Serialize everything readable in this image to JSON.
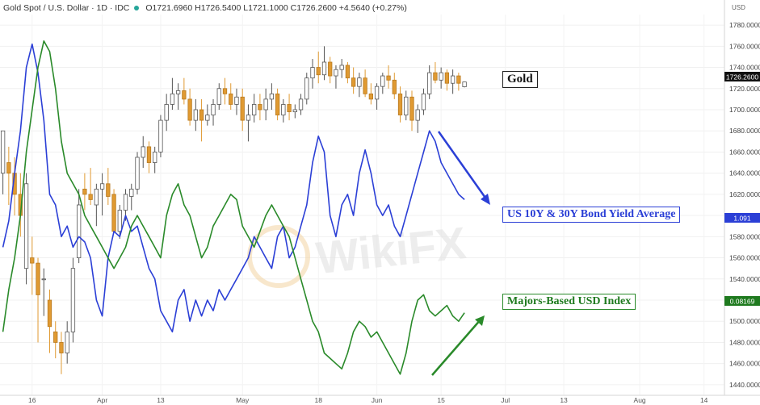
{
  "header": {
    "symbol": "Gold Spot / U.S. Dollar · 1D · IDC",
    "ohlc": "O1721.6960  H1726.5400  L1721.1000  C1726.2600  +4.5640 (+0.27%)"
  },
  "labels": {
    "gold": "Gold",
    "yield": "US 10Y & 30Y Bond Yield Average",
    "usd": "Majors-Based USD Index"
  },
  "price_tags": {
    "gold": "1726.2600",
    "yield": "1.091",
    "usd": "0.08169"
  },
  "axis_currency": "USD",
  "watermark": "WikiFX",
  "colors": {
    "up": "#ffffff",
    "down": "#e09a32",
    "yield": "#2b3fd6",
    "usd": "#2a8a2a",
    "arrow_blue": "#2b3fd6",
    "arrow_green": "#2a8a2a"
  },
  "chart_data": {
    "type": "candlestick",
    "ylim": [
      1430,
      1790
    ],
    "ytick_values": [
      1440,
      1460,
      1480,
      1500,
      1520,
      1540,
      1560,
      1580,
      1600,
      1620,
      1640,
      1660,
      1680,
      1700,
      1720,
      1740,
      1760,
      1780
    ],
    "ytick_labels": [
      "1440.0000",
      "1460.0000",
      "1480.0000",
      "1500.0000",
      "1520.0000",
      "1540.0000",
      "1560.0000",
      "1580.0000",
      "1600.0000",
      "1620.0000",
      "1640.0000",
      "1660.0000",
      "1680.0000",
      "1700.0000",
      "1720.0000",
      "1740.0000",
      "1760.0000",
      "1780.0000"
    ],
    "xtick_labels": [
      {
        "label": "16",
        "i": 5
      },
      {
        "label": "Apr",
        "i": 17
      },
      {
        "label": "13",
        "i": 27
      },
      {
        "label": "May",
        "i": 41
      },
      {
        "label": "18",
        "i": 54
      },
      {
        "label": "Jun",
        "i": 64
      },
      {
        "label": "15",
        "i": 75
      },
      {
        "label": "Jul",
        "i": 86
      },
      {
        "label": "13",
        "i": 96
      },
      {
        "label": "Aug",
        "i": 109
      },
      {
        "label": "14",
        "i": 120
      }
    ],
    "n_slots": 124,
    "gold_ohlc": [
      [
        1640,
        1680,
        1620,
        1680
      ],
      [
        1650,
        1665,
        1610,
        1640
      ],
      [
        1640,
        1655,
        1600,
        1620
      ],
      [
        1620,
        1640,
        1580,
        1600
      ],
      [
        1550,
        1640,
        1535,
        1630
      ],
      [
        1560,
        1580,
        1525,
        1555
      ],
      [
        1555,
        1560,
        1480,
        1525
      ],
      [
        1540,
        1550,
        1505,
        1540
      ],
      [
        1520,
        1530,
        1470,
        1495
      ],
      [
        1490,
        1500,
        1465,
        1480
      ],
      [
        1480,
        1490,
        1450,
        1470
      ],
      [
        1470,
        1500,
        1460,
        1490
      ],
      [
        1490,
        1560,
        1480,
        1550
      ],
      [
        1560,
        1625,
        1555,
        1610
      ],
      [
        1625,
        1640,
        1605,
        1620
      ],
      [
        1620,
        1645,
        1610,
        1615
      ],
      [
        1610,
        1630,
        1590,
        1625
      ],
      [
        1625,
        1640,
        1600,
        1630
      ],
      [
        1630,
        1645,
        1610,
        1618
      ],
      [
        1620,
        1625,
        1595,
        1585
      ],
      [
        1585,
        1610,
        1578,
        1605
      ],
      [
        1605,
        1625,
        1595,
        1620
      ],
      [
        1618,
        1630,
        1605,
        1625
      ],
      [
        1625,
        1660,
        1620,
        1655
      ],
      [
        1655,
        1675,
        1645,
        1665
      ],
      [
        1665,
        1670,
        1640,
        1650
      ],
      [
        1650,
        1665,
        1640,
        1660
      ],
      [
        1660,
        1695,
        1655,
        1690
      ],
      [
        1690,
        1715,
        1680,
        1705
      ],
      [
        1705,
        1730,
        1700,
        1715
      ],
      [
        1715,
        1725,
        1700,
        1718
      ],
      [
        1718,
        1730,
        1705,
        1710
      ],
      [
        1710,
        1720,
        1685,
        1690
      ],
      [
        1690,
        1710,
        1680,
        1700
      ],
      [
        1700,
        1710,
        1670,
        1690
      ],
      [
        1690,
        1705,
        1685,
        1695
      ],
      [
        1695,
        1710,
        1685,
        1705
      ],
      [
        1705,
        1725,
        1700,
        1720
      ],
      [
        1720,
        1730,
        1705,
        1715
      ],
      [
        1715,
        1725,
        1700,
        1705
      ],
      [
        1705,
        1720,
        1695,
        1712
      ],
      [
        1712,
        1720,
        1680,
        1690
      ],
      [
        1690,
        1705,
        1670,
        1695
      ],
      [
        1695,
        1715,
        1688,
        1705
      ],
      [
        1705,
        1715,
        1690,
        1700
      ],
      [
        1700,
        1720,
        1690,
        1710
      ],
      [
        1710,
        1725,
        1700,
        1715
      ],
      [
        1715,
        1720,
        1690,
        1695
      ],
      [
        1695,
        1710,
        1688,
        1705
      ],
      [
        1705,
        1715,
        1690,
        1698
      ],
      [
        1698,
        1705,
        1692,
        1700
      ],
      [
        1700,
        1715,
        1695,
        1710
      ],
      [
        1710,
        1735,
        1705,
        1730
      ],
      [
        1730,
        1748,
        1720,
        1740
      ],
      [
        1740,
        1755,
        1725,
        1733
      ],
      [
        1733,
        1760,
        1728,
        1745
      ],
      [
        1745,
        1750,
        1725,
        1732
      ],
      [
        1732,
        1742,
        1720,
        1738
      ],
      [
        1738,
        1748,
        1730,
        1742
      ],
      [
        1742,
        1745,
        1725,
        1730
      ],
      [
        1730,
        1740,
        1715,
        1722
      ],
      [
        1722,
        1735,
        1712,
        1730
      ],
      [
        1730,
        1738,
        1712,
        1715
      ],
      [
        1715,
        1725,
        1705,
        1710
      ],
      [
        1710,
        1725,
        1700,
        1722
      ],
      [
        1722,
        1735,
        1715,
        1732
      ],
      [
        1732,
        1742,
        1720,
        1728
      ],
      [
        1728,
        1735,
        1710,
        1715
      ],
      [
        1715,
        1722,
        1688,
        1695
      ],
      [
        1695,
        1718,
        1690,
        1712
      ],
      [
        1712,
        1718,
        1680,
        1690
      ],
      [
        1690,
        1705,
        1678,
        1700
      ],
      [
        1700,
        1720,
        1695,
        1715
      ],
      [
        1715,
        1742,
        1710,
        1735
      ],
      [
        1735,
        1745,
        1725,
        1728
      ],
      [
        1728,
        1740,
        1720,
        1735
      ],
      [
        1735,
        1738,
        1718,
        1725
      ],
      [
        1725,
        1738,
        1715,
        1732
      ],
      [
        1732,
        1735,
        1718,
        1725
      ],
      [
        1721.7,
        1726.5,
        1721.1,
        1726.26
      ]
    ],
    "series": [
      {
        "name": "US 10Y & 30Y Bond Yield Average",
        "values": [
          1570,
          1595,
          1640,
          1680,
          1740,
          1762,
          1735,
          1690,
          1620,
          1610,
          1580,
          1590,
          1570,
          1580,
          1575,
          1560,
          1520,
          1505,
          1560,
          1585,
          1580,
          1600,
          1585,
          1590,
          1570,
          1550,
          1540,
          1510,
          1500,
          1490,
          1520,
          1530,
          1500,
          1520,
          1505,
          1520,
          1510,
          1530,
          1520,
          1530,
          1540,
          1550,
          1560,
          1580,
          1570,
          1560,
          1550,
          1580,
          1590,
          1560,
          1570,
          1590,
          1610,
          1650,
          1675,
          1660,
          1600,
          1580,
          1610,
          1620,
          1600,
          1640,
          1662,
          1640,
          1610,
          1600,
          1610,
          1590,
          1580,
          1600,
          1620,
          1640,
          1660,
          1680,
          1670,
          1650,
          1640,
          1630,
          1620,
          1615
        ]
      },
      {
        "name": "Majors-Based USD Index",
        "values": [
          1490,
          1530,
          1560,
          1600,
          1660,
          1700,
          1740,
          1765,
          1755,
          1720,
          1670,
          1640,
          1630,
          1620,
          1600,
          1590,
          1580,
          1570,
          1560,
          1550,
          1560,
          1570,
          1590,
          1600,
          1590,
          1580,
          1570,
          1560,
          1600,
          1620,
          1630,
          1610,
          1600,
          1580,
          1560,
          1570,
          1590,
          1600,
          1610,
          1620,
          1615,
          1590,
          1580,
          1570,
          1585,
          1600,
          1610,
          1600,
          1590,
          1580,
          1560,
          1540,
          1520,
          1500,
          1490,
          1470,
          1465,
          1460,
          1455,
          1470,
          1490,
          1500,
          1495,
          1485,
          1490,
          1480,
          1470,
          1460,
          1450,
          1470,
          1500,
          1520,
          1525,
          1510,
          1505,
          1510,
          1515,
          1505,
          1500,
          1508
        ]
      }
    ]
  }
}
